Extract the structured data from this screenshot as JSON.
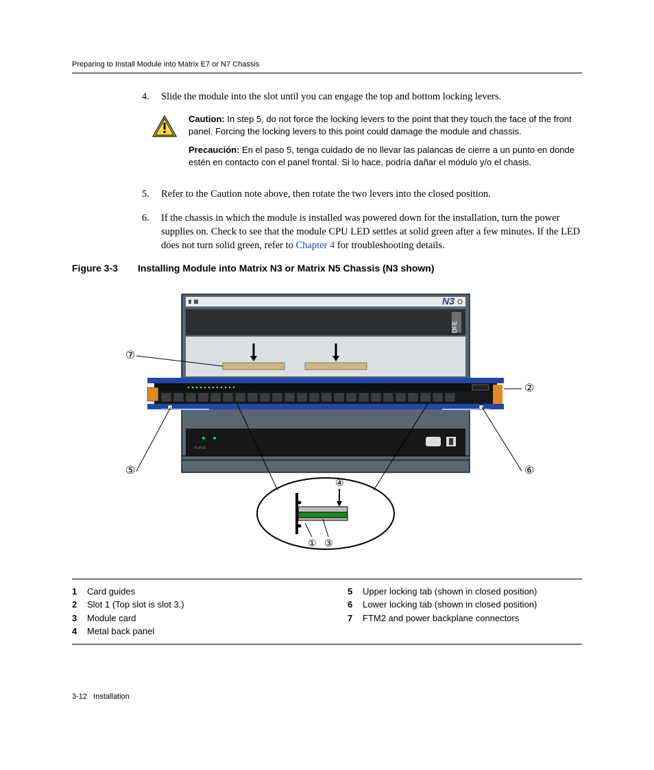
{
  "header": "Preparing to Install Module into Matrix E7 or N7 Chassis",
  "steps": {
    "s4_num": "4.",
    "s4_text": "Slide the module into the slot until you can engage the top and bottom locking levers.",
    "s5_num": "5.",
    "s5_text": "Refer to the Caution note above, then rotate the two levers into the closed position.",
    "s6_num": "6.",
    "s6_text_a": "If the chassis in which the module is installed was powered down for the installation, turn the power supplies on. Check to see that the module CPU LED settles at solid green after a few minutes. If the LED does not turn solid green, refer to ",
    "s6_link": "Chapter 4",
    "s6_text_b": " for troubleshooting details."
  },
  "caution": {
    "label_en": "Caution:",
    "text_en": " In step 5, do not force the locking levers to the point that they touch the face of the front panel. Forcing the locking levers to this point could damage the module and chassis.",
    "label_es": "Precaución:",
    "text_es": " En el paso 5, tenga cuidado de no llevar las palancas de cierre a un punto en donde estén en contacto con el panel frontal. Si lo hace, podría dañar el módulo y/o el chasis."
  },
  "figure": {
    "num": "Figure 3-3",
    "title": "Installing Module into Matrix N3 or Matrix N5 Chassis (N3 shown)",
    "label_n3": "N3",
    "label_dfe": "DFE",
    "callouts": {
      "c1": "①",
      "c2": "②",
      "c3": "③",
      "c4": "④",
      "c5": "⑤",
      "c6": "⑥",
      "c7": "⑦"
    },
    "colors": {
      "chassis_outer": "#5a6670",
      "chassis_inner": "#2b2f33",
      "slot_bg": "#dcdfe2",
      "module_blue": "#2346a8",
      "module_black": "#18191a",
      "port_row": "#3a3d40",
      "psu": "#161718",
      "handle_orange": "#e08a1f",
      "pin_area": "#c9b78a",
      "detail_green": "#1f8a1f",
      "tab_text": "#2c3a66",
      "side_label": "#6a6f73"
    }
  },
  "legend": {
    "left": [
      {
        "n": "1",
        "t": "Card guides"
      },
      {
        "n": "2",
        "t": "Slot 1 (Top slot is slot 3.)"
      },
      {
        "n": "3",
        "t": "Module card"
      },
      {
        "n": "4",
        "t": "Metal back panel"
      }
    ],
    "right": [
      {
        "n": "5",
        "t": "Upper locking tab (shown in closed position)"
      },
      {
        "n": "6",
        "t": "Lower locking tab (shown in closed position)"
      },
      {
        "n": "7",
        "t": "FTM2 and power backplane connectors"
      }
    ]
  },
  "footer": {
    "page": "3-12",
    "section": "Installation"
  }
}
